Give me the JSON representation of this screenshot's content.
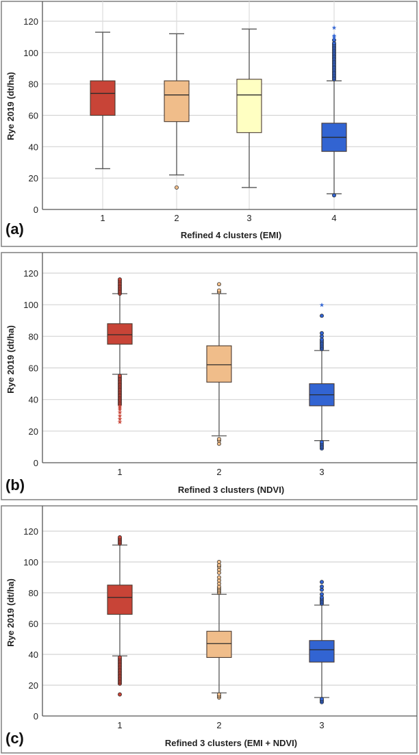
{
  "chart_data": [
    {
      "type": "box",
      "panel_label": "(a)",
      "title": "",
      "xlabel": "Refined 4 clusters (EMI)",
      "ylabel": "Rye 2019 (dt/ha)",
      "ylim": [
        0,
        130
      ],
      "yticks": [
        0,
        20,
        40,
        60,
        80,
        100,
        120
      ],
      "grid": "both",
      "categories": [
        "1",
        "2",
        "3",
        "4"
      ],
      "boxes": [
        {
          "category": "1",
          "color": "#c84437",
          "whisker_low": 26,
          "q1": 60,
          "median": 74,
          "q3": 82,
          "whisker_high": 113,
          "outliers": [],
          "extremes": []
        },
        {
          "category": "2",
          "color": "#f0bd8a",
          "whisker_low": 22,
          "q1": 56,
          "median": 73,
          "q3": 82,
          "whisker_high": 112,
          "outliers": [
            14
          ],
          "extremes": []
        },
        {
          "category": "3",
          "color": "#ffffc2",
          "whisker_low": 14,
          "q1": 49,
          "median": 73,
          "q3": 83,
          "whisker_high": 115,
          "outliers": [],
          "extremes": []
        },
        {
          "category": "4",
          "color": "#3264d2",
          "whisker_low": 10,
          "q1": 37,
          "median": 46,
          "q3": 55,
          "whisker_high": 82,
          "outliers": [
            9,
            83,
            84,
            85,
            86,
            87,
            88,
            89,
            90,
            91,
            92,
            93,
            94,
            95,
            96,
            97,
            98,
            99,
            100,
            101,
            102,
            103,
            104,
            105,
            106,
            108
          ],
          "extremes": [
            110,
            111,
            116
          ]
        }
      ]
    },
    {
      "type": "box",
      "panel_label": "(b)",
      "title": "",
      "xlabel": "Refined 3 clusters (NDVI)",
      "ylabel": "Rye 2019 (dt/ha)",
      "ylim": [
        0,
        130
      ],
      "yticks": [
        0,
        20,
        40,
        60,
        80,
        100,
        120
      ],
      "grid": "horizontal",
      "categories": [
        "1",
        "2",
        "3"
      ],
      "boxes": [
        {
          "category": "1",
          "color": "#c84437",
          "whisker_low": 56,
          "q1": 75,
          "median": 81,
          "q3": 88,
          "whisker_high": 107,
          "outliers": [
            37,
            38,
            39,
            40,
            41,
            42,
            43,
            44,
            45,
            46,
            47,
            48,
            49,
            50,
            51,
            52,
            53,
            54,
            55,
            107,
            108,
            109,
            110,
            111,
            112,
            113,
            114,
            115,
            116
          ],
          "extremes": [
            26,
            28,
            30,
            32,
            34,
            35,
            36
          ]
        },
        {
          "category": "2",
          "color": "#f0bd8a",
          "whisker_low": 17,
          "q1": 51,
          "median": 62,
          "q3": 74,
          "whisker_high": 107,
          "outliers": [
            12,
            14,
            15,
            108,
            109,
            113
          ],
          "extremes": []
        },
        {
          "category": "3",
          "color": "#3264d2",
          "whisker_low": 14,
          "q1": 36,
          "median": 43,
          "q3": 50,
          "whisker_high": 71,
          "outliers": [
            9,
            10,
            11,
            12,
            13,
            72,
            73,
            74,
            75,
            76,
            77,
            78,
            80,
            82,
            93
          ],
          "extremes": [
            100
          ]
        }
      ]
    },
    {
      "type": "box",
      "panel_label": "(c)",
      "title": "",
      "xlabel": "Refined 3 clusters (EMI + NDVI)",
      "ylabel": "Rye 2019 (dt/ha)",
      "ylim": [
        0,
        130
      ],
      "yticks": [
        0,
        20,
        40,
        60,
        80,
        100,
        120
      ],
      "grid": "horizontal",
      "categories": [
        "1",
        "2",
        "3"
      ],
      "boxes": [
        {
          "category": "1",
          "color": "#c84437",
          "whisker_low": 39,
          "q1": 66,
          "median": 77,
          "q3": 85,
          "whisker_high": 111,
          "outliers": [
            14,
            21,
            22,
            23,
            24,
            25,
            26,
            27,
            28,
            29,
            30,
            31,
            32,
            33,
            34,
            35,
            36,
            37,
            38,
            112,
            113,
            114,
            115,
            116
          ],
          "extremes": []
        },
        {
          "category": "2",
          "color": "#f0bd8a",
          "whisker_low": 15,
          "q1": 38,
          "median": 47,
          "q3": 55,
          "whisker_high": 79,
          "outliers": [
            12,
            13,
            14,
            80,
            81,
            82,
            83,
            84,
            86,
            88,
            90,
            93,
            95,
            97,
            98,
            100
          ],
          "extremes": []
        },
        {
          "category": "3",
          "color": "#3264d2",
          "whisker_low": 12,
          "q1": 35,
          "median": 43,
          "q3": 49,
          "whisker_high": 72,
          "outliers": [
            9,
            10,
            11,
            73,
            74,
            75,
            76,
            77,
            79,
            82,
            84,
            87
          ],
          "extremes": []
        }
      ]
    }
  ]
}
